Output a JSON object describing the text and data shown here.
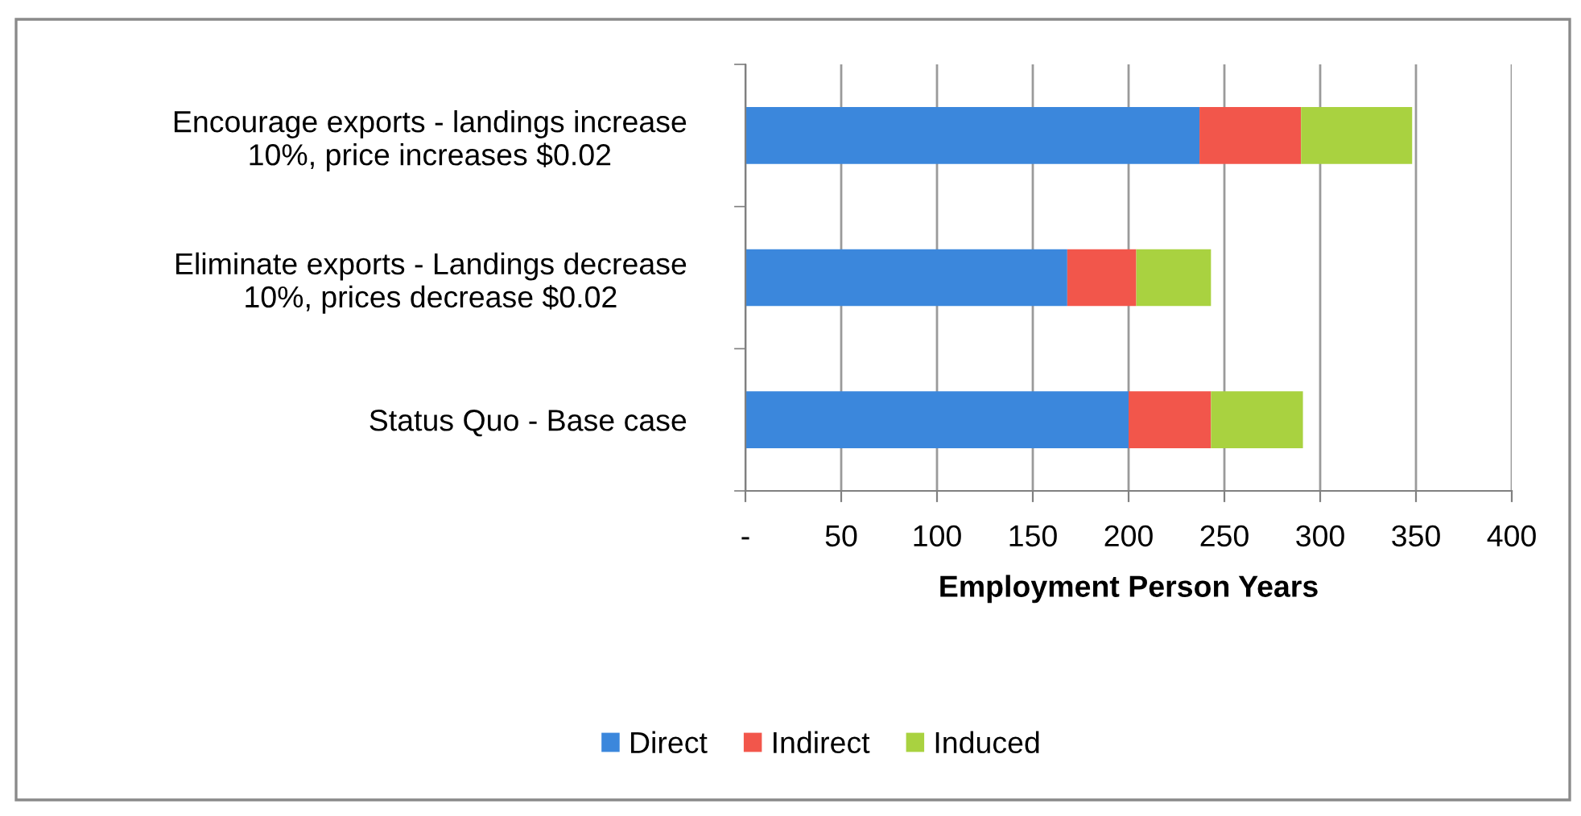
{
  "chart_data": {
    "type": "bar",
    "orientation": "horizontal",
    "stacked": true,
    "categories": [
      "Encourage exports - landings increase\n10%, price increases $0.02",
      "Eliminate exports - Landings decrease\n10%, prices decrease $0.02",
      "Status Quo - Base case"
    ],
    "series": [
      {
        "name": "Direct",
        "color": "#3b87dc",
        "values": [
          237,
          168,
          200
        ]
      },
      {
        "name": "Indirect",
        "color": "#f2564b",
        "values": [
          53,
          36,
          43
        ]
      },
      {
        "name": "Induced",
        "color": "#a9d240",
        "values": [
          58,
          39,
          48
        ]
      }
    ],
    "xlabel": "Employment Person Years",
    "xlim": [
      0,
      400
    ],
    "xticks": [
      {
        "value": 0,
        "label": "-"
      },
      50,
      100,
      150,
      200,
      250,
      300,
      350,
      400
    ],
    "grid": "x",
    "legend": "bottom"
  }
}
